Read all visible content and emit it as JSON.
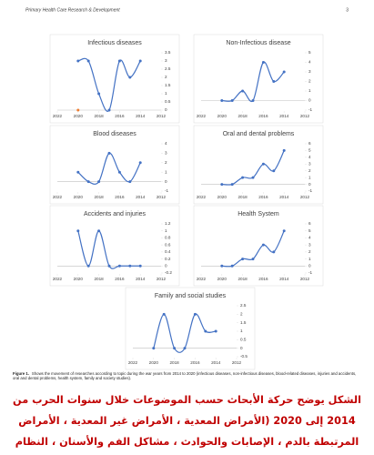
{
  "header": {
    "journal": "Primary Health Care Research & Development",
    "page": "3"
  },
  "chart_data": [
    {
      "type": "line",
      "title": "Infectious diseases",
      "x": [
        2020,
        2019,
        2018,
        2017,
        2016,
        2015,
        2014
      ],
      "series": [
        {
          "color": "#4472c4",
          "values": [
            3,
            3,
            1,
            0,
            3,
            2,
            3
          ]
        },
        {
          "color": "#ed7d31",
          "values": [
            0,
            null,
            null,
            null,
            null,
            null,
            null
          ]
        }
      ],
      "xlim": [
        2022,
        2012
      ],
      "xticks": [
        2022,
        2020,
        2018,
        2016,
        2014,
        2012
      ],
      "ylim": [
        0,
        3.5
      ],
      "yticks": [
        0,
        0.5,
        1,
        1.5,
        2,
        2.5,
        3,
        3.5
      ]
    },
    {
      "type": "line",
      "title": "Non-Infectious disease",
      "x": [
        2020,
        2019,
        2018,
        2017,
        2016,
        2015,
        2014
      ],
      "series": [
        {
          "color": "#4472c4",
          "values": [
            0,
            0,
            1,
            0,
            4,
            2,
            3
          ]
        }
      ],
      "xlim": [
        2022,
        2012
      ],
      "xticks": [
        2022,
        2020,
        2018,
        2016,
        2014,
        2012
      ],
      "ylim": [
        -1,
        5
      ],
      "yticks": [
        -1,
        0,
        1,
        2,
        3,
        4,
        5
      ]
    },
    {
      "type": "line",
      "title": "Blood diseases",
      "x": [
        2020,
        2019,
        2018,
        2017,
        2016,
        2015,
        2014
      ],
      "series": [
        {
          "color": "#4472c4",
          "values": [
            1,
            0,
            0,
            3,
            1,
            0,
            2
          ]
        }
      ],
      "xlim": [
        2022,
        2012
      ],
      "xticks": [
        2022,
        2020,
        2018,
        2016,
        2014,
        2012
      ],
      "ylim": [
        -1,
        4
      ],
      "yticks": [
        -1,
        0,
        1,
        2,
        3,
        4
      ]
    },
    {
      "type": "line",
      "title": "Oral and dental problems",
      "x": [
        2020,
        2019,
        2018,
        2017,
        2016,
        2015,
        2014
      ],
      "series": [
        {
          "color": "#4472c4",
          "values": [
            0,
            0,
            1,
            1,
            3,
            2,
            5
          ]
        }
      ],
      "xlim": [
        2022,
        2012
      ],
      "xticks": [
        2022,
        2020,
        2018,
        2016,
        2014,
        2012
      ],
      "ylim": [
        -1,
        6
      ],
      "yticks": [
        -1,
        0,
        1,
        2,
        3,
        4,
        5,
        6
      ]
    },
    {
      "type": "line",
      "title": "Accidents and injuries",
      "x": [
        2020,
        2019,
        2018,
        2017,
        2016,
        2015,
        2014
      ],
      "series": [
        {
          "color": "#4472c4",
          "values": [
            1,
            0,
            1,
            0,
            0,
            0,
            0
          ]
        }
      ],
      "xlim": [
        2022,
        2012
      ],
      "xticks": [
        2022,
        2020,
        2018,
        2016,
        2014,
        2012
      ],
      "ylim": [
        -0.2,
        1.2
      ],
      "yticks": [
        -0.2,
        0,
        0.2,
        0.4,
        0.6,
        0.8,
        1,
        1.2
      ]
    },
    {
      "type": "line",
      "title": "Health System",
      "x": [
        2020,
        2019,
        2018,
        2017,
        2016,
        2015,
        2014
      ],
      "series": [
        {
          "color": "#4472c4",
          "values": [
            0,
            0,
            1,
            1,
            3,
            2,
            5
          ]
        }
      ],
      "xlim": [
        2022,
        2012
      ],
      "xticks": [
        2022,
        2020,
        2018,
        2016,
        2014,
        2012
      ],
      "ylim": [
        -1,
        6
      ],
      "yticks": [
        -1,
        0,
        1,
        2,
        3,
        4,
        5,
        6
      ]
    },
    {
      "type": "line",
      "title": "Family and social studies",
      "x": [
        2020,
        2019,
        2018,
        2017,
        2016,
        2015,
        2014
      ],
      "series": [
        {
          "color": "#4472c4",
          "values": [
            0,
            2,
            0,
            0,
            2,
            1,
            1
          ]
        }
      ],
      "xlim": [
        2022,
        2012
      ],
      "xticks": [
        2022,
        2020,
        2018,
        2016,
        2014,
        2012
      ],
      "ylim": [
        -0.5,
        2.5
      ],
      "yticks": [
        -0.5,
        0,
        0.5,
        1,
        1.5,
        2,
        2.5
      ]
    }
  ],
  "caption": {
    "label": "Figure 1.",
    "text": "Shows the movement of researches according to topic during the war years from 2014 to 2020 (infectious diseases, non-infectious diseases, blood-related diseases, injuries and accidents, oral and dental problems, health system, family and society studies)."
  },
  "translation": "الشكل يوضح حركة الأبحاث حسب الموضوعات خلال سنوات الحرب من 2014 إلى 2020 (الأمراض المعدية ، الأمراض غير المعدية ، الأمراض المرتبطة بالدم ، الإصابات والحوادث ، مشاكل الفم والأسنان ، النظام الصحي ، دراسات الأسرة"
}
